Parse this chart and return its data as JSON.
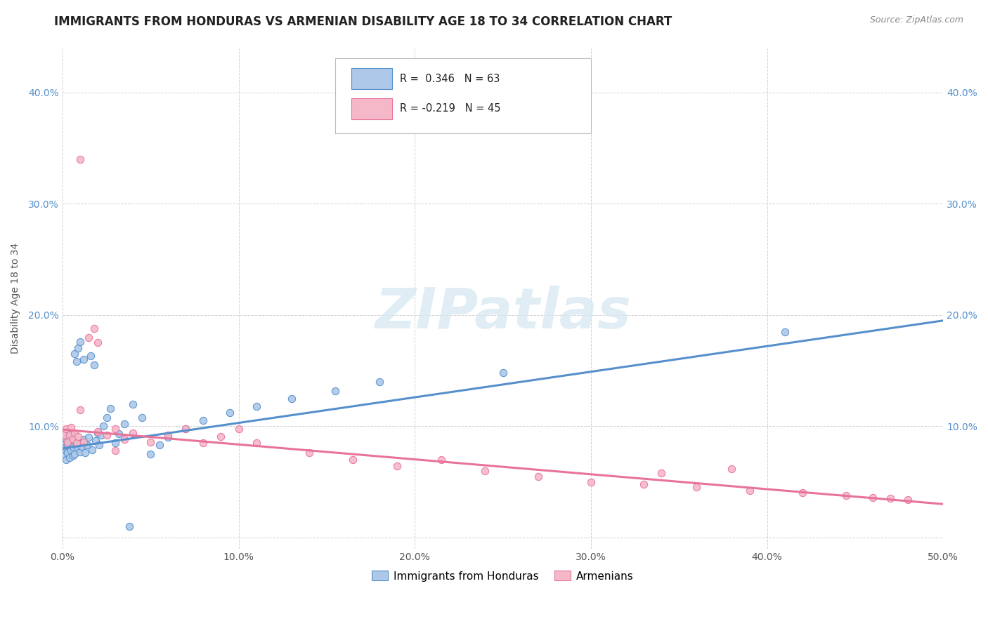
{
  "title": "IMMIGRANTS FROM HONDURAS VS ARMENIAN DISABILITY AGE 18 TO 34 CORRELATION CHART",
  "source_text": "Source: ZipAtlas.com",
  "ylabel": "Disability Age 18 to 34",
  "xlim": [
    0.0,
    0.5
  ],
  "ylim": [
    -0.01,
    0.44
  ],
  "xticks": [
    0.0,
    0.1,
    0.2,
    0.3,
    0.4,
    0.5
  ],
  "yticks": [
    0.0,
    0.1,
    0.2,
    0.3,
    0.4
  ],
  "xtick_labels": [
    "0.0%",
    "10.0%",
    "20.0%",
    "30.0%",
    "40.0%",
    "50.0%"
  ],
  "ytick_labels_left": [
    "",
    "10.0%",
    "20.0%",
    "30.0%",
    "40.0%"
  ],
  "ytick_labels_right": [
    "",
    "10.0%",
    "20.0%",
    "30.0%",
    "40.0%"
  ],
  "legend1_label": "R =  0.346   N = 63",
  "legend2_label": "R = -0.219   N = 45",
  "scatter1_color": "#adc8e8",
  "scatter2_color": "#f5b8c8",
  "line1_color": "#5590cc",
  "line2_color": "#e8739a",
  "watermark": "ZIPatlas",
  "legend_series1": "Immigrants from Honduras",
  "legend_series2": "Armenians",
  "blue_scatter_x": [
    0.001,
    0.001,
    0.001,
    0.001,
    0.002,
    0.002,
    0.002,
    0.002,
    0.003,
    0.003,
    0.003,
    0.004,
    0.004,
    0.004,
    0.005,
    0.005,
    0.005,
    0.006,
    0.006,
    0.006,
    0.007,
    0.007,
    0.008,
    0.008,
    0.009,
    0.009,
    0.01,
    0.01,
    0.01,
    0.011,
    0.012,
    0.012,
    0.013,
    0.014,
    0.015,
    0.016,
    0.017,
    0.018,
    0.019,
    0.02,
    0.021,
    0.022,
    0.023,
    0.025,
    0.027,
    0.03,
    0.032,
    0.035,
    0.038,
    0.04,
    0.045,
    0.05,
    0.055,
    0.06,
    0.07,
    0.08,
    0.095,
    0.11,
    0.13,
    0.155,
    0.18,
    0.25,
    0.41
  ],
  "blue_scatter_y": [
    0.075,
    0.08,
    0.085,
    0.09,
    0.07,
    0.078,
    0.082,
    0.088,
    0.076,
    0.083,
    0.091,
    0.072,
    0.085,
    0.093,
    0.079,
    0.087,
    0.093,
    0.074,
    0.081,
    0.089,
    0.165,
    0.075,
    0.083,
    0.158,
    0.08,
    0.17,
    0.077,
    0.085,
    0.176,
    0.082,
    0.088,
    0.16,
    0.076,
    0.083,
    0.09,
    0.163,
    0.079,
    0.155,
    0.087,
    0.094,
    0.083,
    0.092,
    0.1,
    0.108,
    0.116,
    0.085,
    0.093,
    0.102,
    0.01,
    0.12,
    0.108,
    0.075,
    0.083,
    0.09,
    0.098,
    0.105,
    0.112,
    0.118,
    0.125,
    0.132,
    0.14,
    0.148,
    0.185
  ],
  "pink_scatter_x": [
    0.001,
    0.002,
    0.003,
    0.004,
    0.005,
    0.006,
    0.007,
    0.008,
    0.009,
    0.01,
    0.012,
    0.015,
    0.018,
    0.02,
    0.025,
    0.03,
    0.035,
    0.04,
    0.05,
    0.06,
    0.07,
    0.08,
    0.09,
    0.1,
    0.11,
    0.14,
    0.165,
    0.19,
    0.215,
    0.24,
    0.27,
    0.3,
    0.33,
    0.36,
    0.39,
    0.42,
    0.445,
    0.46,
    0.47,
    0.48,
    0.01,
    0.02,
    0.03,
    0.34,
    0.38
  ],
  "pink_scatter_y": [
    0.092,
    0.098,
    0.086,
    0.092,
    0.099,
    0.088,
    0.094,
    0.085,
    0.091,
    0.34,
    0.086,
    0.18,
    0.188,
    0.175,
    0.092,
    0.098,
    0.088,
    0.094,
    0.086,
    0.092,
    0.098,
    0.085,
    0.091,
    0.098,
    0.085,
    0.076,
    0.07,
    0.064,
    0.07,
    0.06,
    0.055,
    0.05,
    0.048,
    0.045,
    0.042,
    0.04,
    0.038,
    0.036,
    0.035,
    0.034,
    0.115,
    0.095,
    0.078,
    0.058,
    0.062
  ],
  "blue_line_x": [
    0.0,
    0.5
  ],
  "blue_line_y": [
    0.08,
    0.195
  ],
  "pink_line_x": [
    0.0,
    0.5
  ],
  "pink_line_y": [
    0.097,
    0.03
  ],
  "background_color": "#ffffff",
  "grid_color": "#cccccc",
  "title_fontsize": 12,
  "axis_label_fontsize": 10,
  "tick_fontsize": 10
}
